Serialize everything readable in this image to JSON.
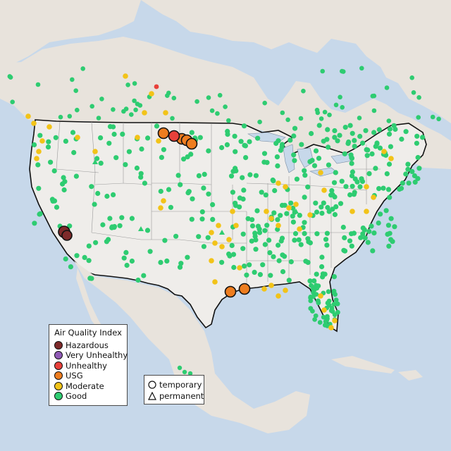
{
  "legend": {
    "title": "Air Quality Index",
    "categories": [
      {
        "label": "Hazardous",
        "color": "#7e2a2a"
      },
      {
        "label": "Very Unhealthy",
        "color": "#8f59b5"
      },
      {
        "label": "Unhealthy",
        "color": "#e8403a"
      },
      {
        "label": "USG",
        "color": "#ee7d1f"
      },
      {
        "label": "Moderate",
        "color": "#f2c318"
      },
      {
        "label": "Good",
        "color": "#2ecc71"
      }
    ]
  },
  "monitor_types": [
    {
      "label": "temporary",
      "shape": "circle"
    },
    {
      "label": "permanent",
      "shape": "triangle"
    }
  ],
  "colors": {
    "ocean": "#c7d8ea",
    "land": "#e8e3dc",
    "us_land": "#efedea",
    "border": "#111111",
    "state_line": "#9a9a9a"
  }
}
